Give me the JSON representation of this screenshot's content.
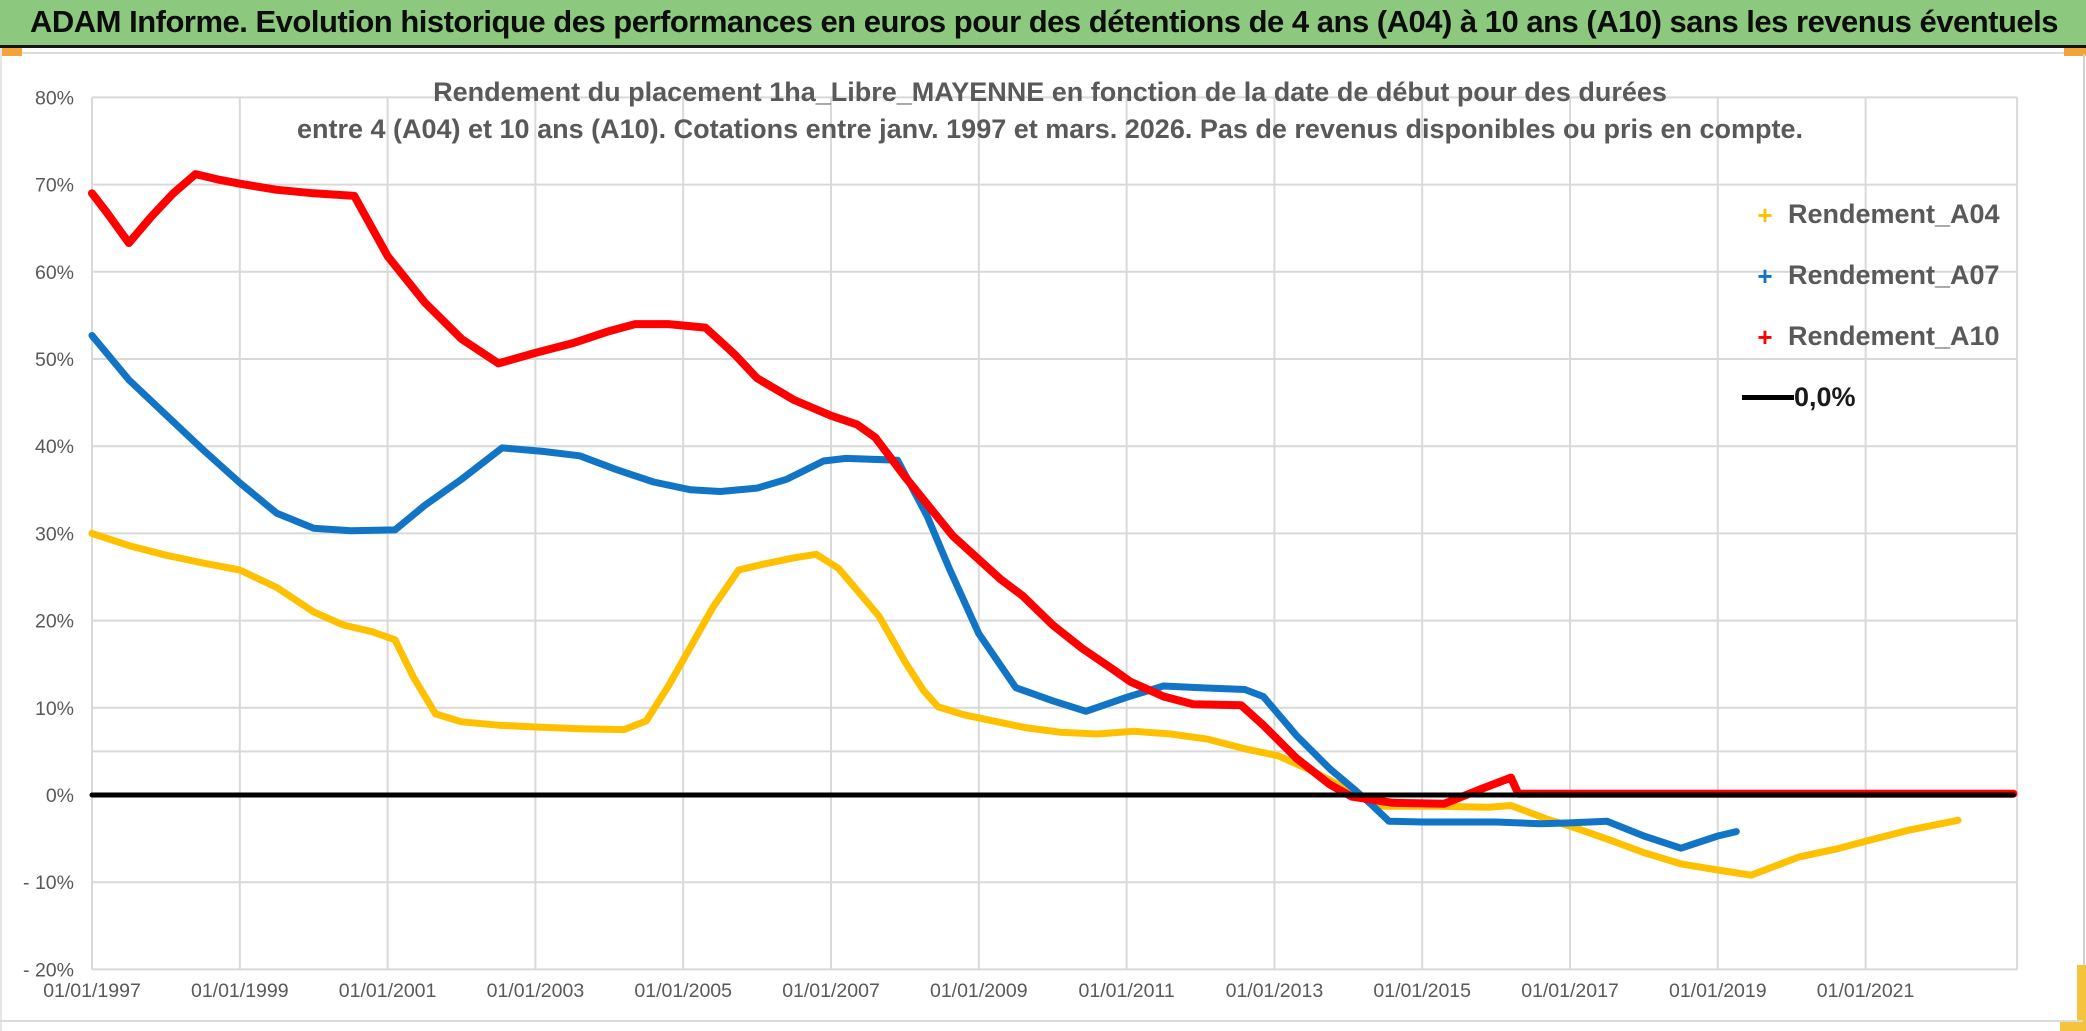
{
  "window": {
    "title": "ADAM Informe. Evolution historique des performances en euros pour des détentions de 4 ans (A04) à 10 ans (A10) sans les revenus éventuels"
  },
  "colors": {
    "title_bar_green": "#8CC87E",
    "accent_orange": "#F2A43A",
    "accent_gold": "#F5C33C",
    "text_gray": "#595959",
    "grid_gray": "#D9D9D9",
    "series_a04": "#FFC000",
    "series_a07": "#1274C5",
    "series_a10": "#FF0000",
    "zero_line": "#000000"
  },
  "chart_data": {
    "type": "line",
    "title_line1": "Rendement du placement 1ha_Libre_MAYENNE en fonction de la date de début pour des durées",
    "title_line2": "entre 4 (A04) et 10 ans (A10). Cotations entre janv. 1997 et mars. 2026. Pas de revenus disponibles ou pris en compte.",
    "xlabel": "",
    "ylabel": "",
    "xlim": [
      1997.0,
      2023.05
    ],
    "ylim": [
      -20,
      80
    ],
    "grid": true,
    "extra_gridline_pct": 5,
    "legend_position": "right",
    "yticks": [
      {
        "label": "80%",
        "value": 80
      },
      {
        "label": "70%",
        "value": 70
      },
      {
        "label": "60%",
        "value": 60
      },
      {
        "label": "50%",
        "value": 50
      },
      {
        "label": "40%",
        "value": 40
      },
      {
        "label": "30%",
        "value": 30
      },
      {
        "label": "20%",
        "value": 20
      },
      {
        "label": "10%",
        "value": 10
      },
      {
        "label": "0%",
        "value": 0
      },
      {
        "label": "- 10%",
        "value": -10
      },
      {
        "label": "- 20%",
        "value": -20
      }
    ],
    "xticks": [
      {
        "label": "01/01/1997",
        "year": 1997
      },
      {
        "label": "01/01/1999",
        "year": 1999
      },
      {
        "label": "01/01/2001",
        "year": 2001
      },
      {
        "label": "01/01/2003",
        "year": 2003
      },
      {
        "label": "01/01/2005",
        "year": 2005
      },
      {
        "label": "01/01/2007",
        "year": 2007
      },
      {
        "label": "01/01/2009",
        "year": 2009
      },
      {
        "label": "01/01/2011",
        "year": 2011
      },
      {
        "label": "01/01/2013",
        "year": 2013
      },
      {
        "label": "01/01/2015",
        "year": 2015
      },
      {
        "label": "01/01/2017",
        "year": 2017
      },
      {
        "label": "01/01/2019",
        "year": 2019
      },
      {
        "label": "01/01/2021",
        "year": 2021
      }
    ],
    "legend": {
      "items": [
        {
          "label": "Rendement_A04",
          "marker": "+",
          "color": "#FFC000"
        },
        {
          "label": "Rendement_A07",
          "marker": "+",
          "color": "#1274C5"
        },
        {
          "label": "Rendement_A10",
          "marker": "+",
          "color": "#FF0000"
        },
        {
          "label": "0,0%",
          "marker": "line",
          "color": "#000000"
        }
      ]
    },
    "series": [
      {
        "name": "Rendement_A04",
        "color": "#FFC000",
        "width": 7,
        "points": [
          [
            1997.0,
            30
          ],
          [
            1997.5,
            28.6
          ],
          [
            1998.0,
            27.5
          ],
          [
            1998.5,
            26.6
          ],
          [
            1999.0,
            25.8
          ],
          [
            1999.5,
            23.8
          ],
          [
            2000.0,
            21
          ],
          [
            2000.4,
            19.5
          ],
          [
            2000.8,
            18.7
          ],
          [
            2001.1,
            17.8
          ],
          [
            2001.35,
            13.5
          ],
          [
            2001.65,
            9.3
          ],
          [
            2002.0,
            8.4
          ],
          [
            2002.5,
            8
          ],
          [
            2003.0,
            7.8
          ],
          [
            2003.6,
            7.6
          ],
          [
            2004.2,
            7.5
          ],
          [
            2004.5,
            8.5
          ],
          [
            2004.8,
            12.5
          ],
          [
            2005.1,
            17
          ],
          [
            2005.4,
            21.5
          ],
          [
            2005.75,
            25.8
          ],
          [
            2006.1,
            26.5
          ],
          [
            2006.5,
            27.2
          ],
          [
            2006.8,
            27.6
          ],
          [
            2007.1,
            26
          ],
          [
            2007.4,
            23
          ],
          [
            2007.65,
            20.5
          ],
          [
            2008.0,
            15.3
          ],
          [
            2008.25,
            12
          ],
          [
            2008.45,
            10.1
          ],
          [
            2008.8,
            9.2
          ],
          [
            2009.3,
            8.3
          ],
          [
            2009.65,
            7.7
          ],
          [
            2010.1,
            7.2
          ],
          [
            2010.6,
            7
          ],
          [
            2011.1,
            7.3
          ],
          [
            2011.6,
            7
          ],
          [
            2012.1,
            6.4
          ],
          [
            2012.6,
            5.3
          ],
          [
            2013.05,
            4.5
          ],
          [
            2013.5,
            2.8
          ],
          [
            2014.0,
            0.6
          ],
          [
            2014.45,
            -1.3
          ],
          [
            2015.2,
            -1.3
          ],
          [
            2015.9,
            -1.4
          ],
          [
            2016.2,
            -1.2
          ],
          [
            2016.7,
            -2.8
          ],
          [
            2017.05,
            -3.7
          ],
          [
            2017.55,
            -5.2
          ],
          [
            2018.0,
            -6.6
          ],
          [
            2018.5,
            -7.9
          ],
          [
            2019.0,
            -8.6
          ],
          [
            2019.45,
            -9.2
          ],
          [
            2020.1,
            -7.1
          ],
          [
            2020.6,
            -6.2
          ],
          [
            2021.0,
            -5.3
          ],
          [
            2021.6,
            -4
          ],
          [
            2022.25,
            -2.9
          ]
        ]
      },
      {
        "name": "Rendement_A07",
        "color": "#1274C5",
        "width": 7,
        "points": [
          [
            1997.0,
            52.7
          ],
          [
            1997.5,
            47.6
          ],
          [
            1998.0,
            43.6
          ],
          [
            1998.5,
            39.6
          ],
          [
            1999.0,
            35.8
          ],
          [
            1999.5,
            32.3
          ],
          [
            2000.0,
            30.6
          ],
          [
            2000.5,
            30.3
          ],
          [
            2001.1,
            30.4
          ],
          [
            2001.5,
            33.2
          ],
          [
            2002.0,
            36.2
          ],
          [
            2002.55,
            39.8
          ],
          [
            2003.1,
            39.4
          ],
          [
            2003.6,
            38.9
          ],
          [
            2004.1,
            37.3
          ],
          [
            2004.6,
            35.9
          ],
          [
            2005.1,
            35
          ],
          [
            2005.5,
            34.8
          ],
          [
            2006.0,
            35.2
          ],
          [
            2006.4,
            36.2
          ],
          [
            2006.9,
            38.3
          ],
          [
            2007.2,
            38.6
          ],
          [
            2007.9,
            38.4
          ],
          [
            2008.3,
            32
          ],
          [
            2008.6,
            26
          ],
          [
            2009.0,
            18.5
          ],
          [
            2009.5,
            12.3
          ],
          [
            2010.0,
            10.8
          ],
          [
            2010.45,
            9.6
          ],
          [
            2011.0,
            11.2
          ],
          [
            2011.5,
            12.5
          ],
          [
            2012.0,
            12.3
          ],
          [
            2012.6,
            12.1
          ],
          [
            2012.85,
            11.3
          ],
          [
            2013.3,
            6.8
          ],
          [
            2013.75,
            3
          ],
          [
            2014.1,
            0.5
          ],
          [
            2014.3,
            -1
          ],
          [
            2014.55,
            -3
          ],
          [
            2015.0,
            -3.1
          ],
          [
            2016.0,
            -3.1
          ],
          [
            2016.6,
            -3.3
          ],
          [
            2017.0,
            -3.2
          ],
          [
            2017.5,
            -3
          ],
          [
            2018.0,
            -4.7
          ],
          [
            2018.5,
            -6.1
          ],
          [
            2019.0,
            -4.7
          ],
          [
            2019.25,
            -4.2
          ]
        ]
      },
      {
        "name": "Rendement_A10",
        "color": "#FF0000",
        "width": 8,
        "points": [
          [
            1997.0,
            69
          ],
          [
            1997.2,
            66.8
          ],
          [
            1997.5,
            63.3
          ],
          [
            1997.8,
            66.3
          ],
          [
            1998.1,
            69
          ],
          [
            1998.4,
            71.2
          ],
          [
            1998.7,
            70.6
          ],
          [
            1999.0,
            70.1
          ],
          [
            1999.5,
            69.4
          ],
          [
            2000.0,
            69
          ],
          [
            2000.55,
            68.7
          ],
          [
            2001.0,
            61.8
          ],
          [
            2001.5,
            56.5
          ],
          [
            2002.0,
            52.3
          ],
          [
            2002.5,
            49.5
          ],
          [
            2003.0,
            50.7
          ],
          [
            2003.5,
            51.8
          ],
          [
            2004.0,
            53.2
          ],
          [
            2004.35,
            54
          ],
          [
            2004.8,
            54
          ],
          [
            2005.3,
            53.6
          ],
          [
            2005.7,
            50.5
          ],
          [
            2006.0,
            47.8
          ],
          [
            2006.5,
            45.3
          ],
          [
            2007.0,
            43.5
          ],
          [
            2007.35,
            42.5
          ],
          [
            2007.6,
            41
          ],
          [
            2008.0,
            36.5
          ],
          [
            2008.65,
            29.7
          ],
          [
            2009.3,
            24.7
          ],
          [
            2009.6,
            22.8
          ],
          [
            2010.0,
            19.5
          ],
          [
            2010.4,
            16.8
          ],
          [
            2010.8,
            14.5
          ],
          [
            2011.05,
            13
          ],
          [
            2011.5,
            11.3
          ],
          [
            2011.9,
            10.4
          ],
          [
            2012.55,
            10.3
          ],
          [
            2012.85,
            8
          ],
          [
            2013.3,
            4.2
          ],
          [
            2013.75,
            1.2
          ],
          [
            2014.05,
            -0.2
          ],
          [
            2014.6,
            -0.9
          ],
          [
            2015.3,
            -1
          ],
          [
            2015.8,
            0.7
          ],
          [
            2016.2,
            2
          ],
          [
            2016.3,
            0.15
          ],
          [
            2023.0,
            0.15
          ]
        ]
      },
      {
        "name": "0,0%",
        "color": "#000000",
        "width": 5,
        "points": [
          [
            1997.0,
            0
          ],
          [
            2023.0,
            0
          ]
        ]
      }
    ]
  }
}
